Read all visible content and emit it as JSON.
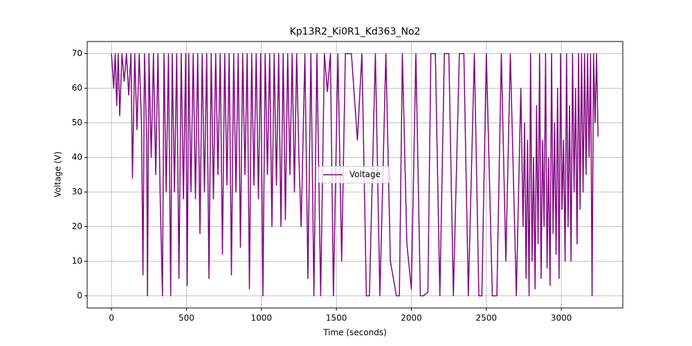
{
  "chart_data": {
    "type": "line",
    "title": "Kp13R2_Ki0R1_Kd363_No2",
    "x_label": "Time (seconds)",
    "y_label": "Voltage (V)",
    "xlim": [
      -162,
      3410
    ],
    "ylim": [
      -3.5,
      73.5
    ],
    "xticks": [
      0,
      500,
      1000,
      1500,
      2000,
      2500,
      3000
    ],
    "yticks": [
      0,
      10,
      20,
      30,
      40,
      50,
      60,
      70
    ],
    "grid": true,
    "legend": "center",
    "x": [
      0,
      15,
      25,
      35,
      45,
      55,
      70,
      85,
      100,
      115,
      130,
      140,
      155,
      170,
      185,
      200,
      210,
      220,
      235,
      240,
      250,
      265,
      280,
      295,
      310,
      325,
      340,
      350,
      365,
      380,
      395,
      405,
      420,
      435,
      450,
      465,
      480,
      495,
      505,
      515,
      530,
      545,
      560,
      575,
      590,
      605,
      620,
      635,
      650,
      665,
      680,
      695,
      710,
      725,
      740,
      755,
      770,
      785,
      800,
      815,
      830,
      845,
      860,
      875,
      890,
      905,
      920,
      935,
      950,
      965,
      980,
      995,
      1010,
      1025,
      1040,
      1055,
      1070,
      1085,
      1100,
      1115,
      1130,
      1145,
      1160,
      1175,
      1190,
      1205,
      1220,
      1235,
      1250,
      1265,
      1290,
      1310,
      1330,
      1350,
      1370,
      1395,
      1420,
      1440,
      1460,
      1480,
      1510,
      1535,
      1560,
      1600,
      1640,
      1670,
      1700,
      1720,
      1760,
      1790,
      1830,
      1860,
      1900,
      1920,
      1940,
      1970,
      2000,
      2030,
      2060,
      2080,
      2110,
      2130,
      2160,
      2190,
      2220,
      2250,
      2280,
      2320,
      2350,
      2380,
      2420,
      2450,
      2470,
      2500,
      2540,
      2570,
      2600,
      2630,
      2660,
      2700,
      2730,
      2745,
      2755,
      2765,
      2775,
      2785,
      2795,
      2805,
      2815,
      2825,
      2835,
      2845,
      2855,
      2865,
      2875,
      2885,
      2895,
      2905,
      2915,
      2925,
      2935,
      2945,
      2955,
      2965,
      2975,
      2985,
      2995,
      3005,
      3015,
      3025,
      3035,
      3045,
      3055,
      3065,
      3075,
      3085,
      3095,
      3105,
      3115,
      3125,
      3135,
      3145,
      3155,
      3165,
      3175,
      3185,
      3195,
      3205,
      3215,
      3225,
      3235,
      3245
    ],
    "series": [
      {
        "name": "Voltage",
        "color": "#800080",
        "values": [
          70,
          60,
          70,
          55,
          70,
          52,
          70,
          62,
          70,
          58,
          70,
          34,
          70,
          48,
          70,
          50,
          6,
          70,
          45,
          0,
          70,
          40,
          70,
          35,
          70,
          28,
          0,
          70,
          30,
          70,
          0,
          70,
          30,
          70,
          5,
          70,
          28,
          70,
          3,
          70,
          30,
          70,
          28,
          70,
          18,
          70,
          30,
          70,
          5,
          70,
          28,
          70,
          35,
          70,
          12,
          70,
          32,
          70,
          6,
          70,
          30,
          70,
          14,
          70,
          35,
          70,
          2,
          70,
          32,
          70,
          28,
          70,
          0,
          70,
          35,
          70,
          20,
          70,
          32,
          70,
          20,
          70,
          22,
          70,
          35,
          70,
          30,
          70,
          40,
          20,
          70,
          5,
          70,
          0,
          70,
          0,
          70,
          59,
          70,
          0,
          70,
          10,
          70,
          70,
          45,
          70,
          0,
          0,
          70,
          0,
          70,
          10,
          0,
          0,
          70,
          15,
          2,
          70,
          0,
          0,
          1,
          70,
          70,
          0,
          70,
          70,
          0,
          70,
          70,
          0,
          70,
          0,
          0,
          70,
          0,
          0,
          70,
          10,
          70,
          0,
          60,
          20,
          50,
          5,
          45,
          0,
          70,
          10,
          40,
          2,
          55,
          15,
          70,
          5,
          45,
          20,
          70,
          8,
          40,
          3,
          70,
          18,
          50,
          12,
          60,
          5,
          70,
          25,
          45,
          10,
          70,
          20,
          55,
          10,
          70,
          30,
          60,
          15,
          70,
          25,
          70,
          30,
          70,
          35,
          70,
          40,
          70,
          0,
          70,
          50,
          70,
          46
        ]
      }
    ]
  }
}
